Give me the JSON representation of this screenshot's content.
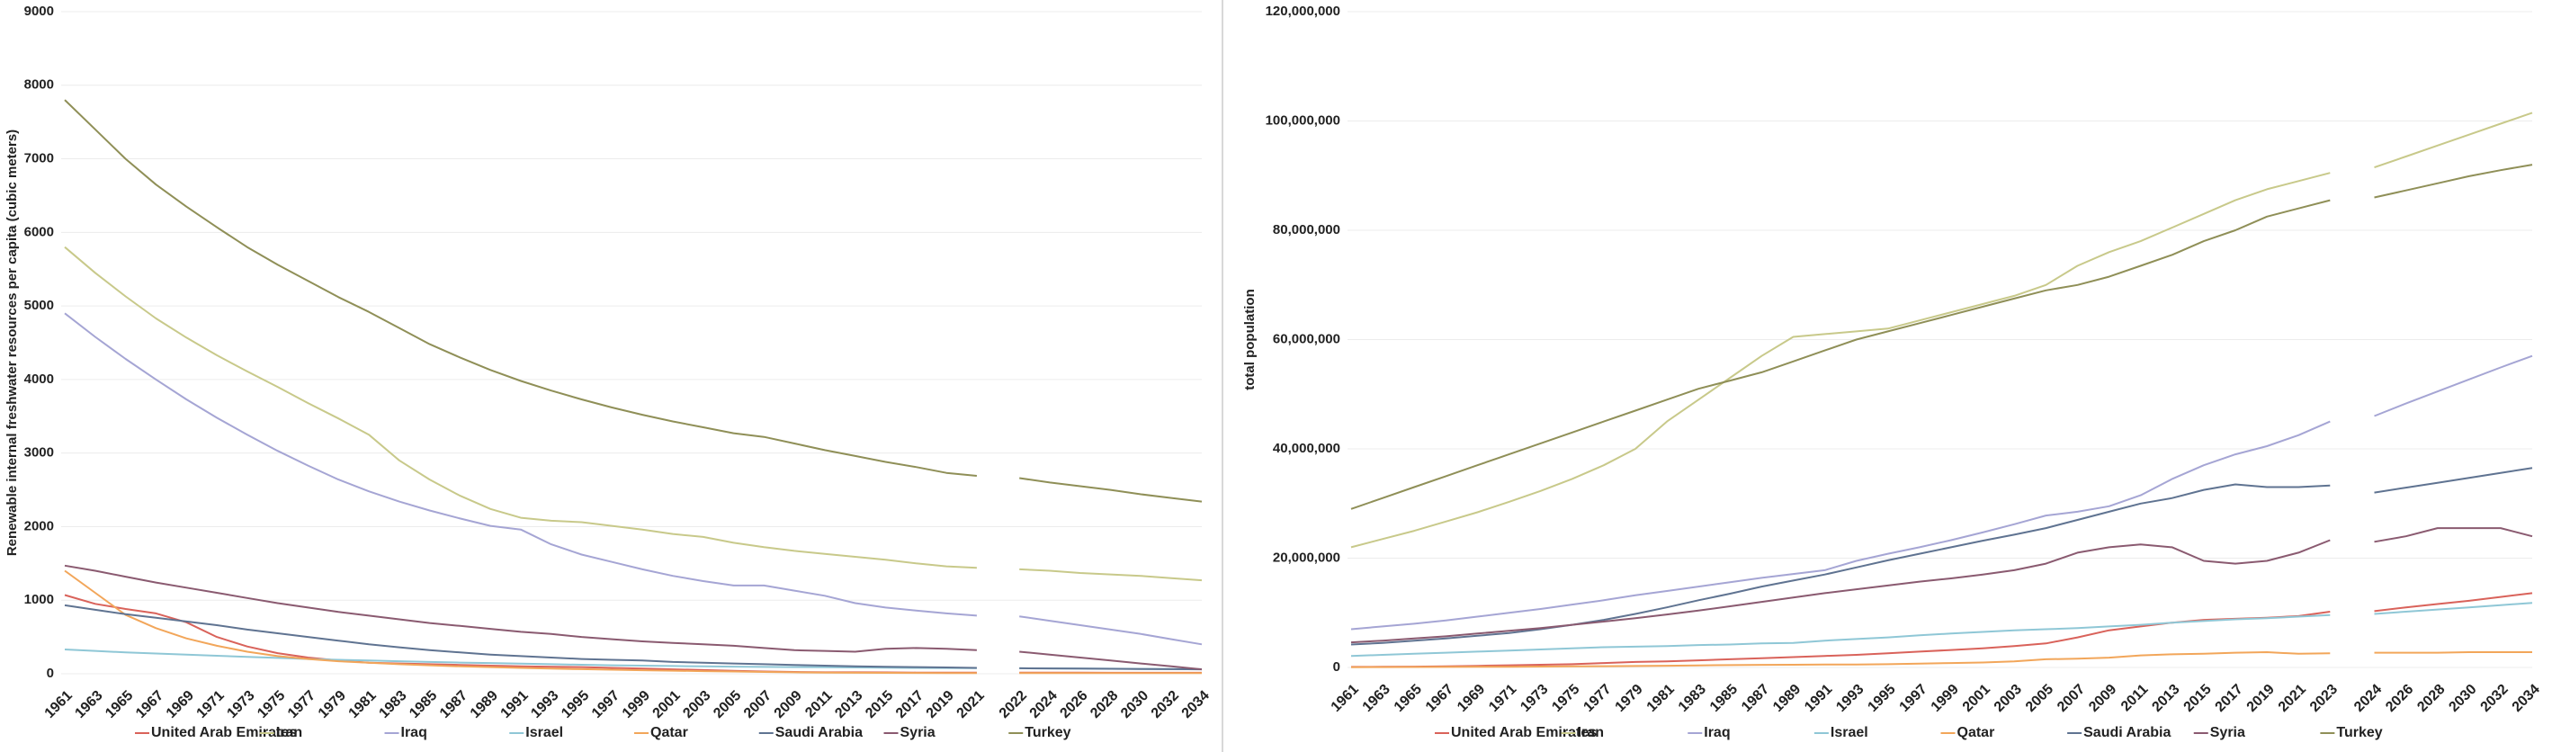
{
  "chart_data": [
    {
      "type": "line",
      "ylabel": "Renewable internal freshwater resources per capita (cubic meters)",
      "categories": [
        "1961",
        "1963",
        "1965",
        "1967",
        "1969",
        "1971",
        "1973",
        "1975",
        "1977",
        "1979",
        "1981",
        "1983",
        "1985",
        "1987",
        "1989",
        "1991",
        "1993",
        "1995",
        "1997",
        "1999",
        "2001",
        "2003",
        "2005",
        "2007",
        "2009",
        "2011",
        "2013",
        "2015",
        "2017",
        "2019",
        "2021",
        "2022",
        "2024",
        "2026",
        "2028",
        "2030",
        "2032",
        "2034"
      ],
      "ylim": [
        0,
        9000
      ],
      "yticks": [
        0,
        1000,
        2000,
        3000,
        4000,
        5000,
        6000,
        7000,
        8000,
        9000
      ],
      "grid": true,
      "series": [
        {
          "name": "United Arab Emirates",
          "color": "#d9625a",
          "values": [
            1070,
            950,
            880,
            820,
            700,
            500,
            370,
            280,
            220,
            180,
            150,
            140,
            130,
            120,
            110,
            100,
            95,
            90,
            80,
            70,
            60,
            50,
            40,
            30,
            25,
            20,
            20,
            18,
            16,
            16,
            16,
            16,
            15,
            15,
            14,
            14,
            13,
            13
          ]
        },
        {
          "name": "Iran",
          "color": "#c8c98a",
          "values": [
            5800,
            5450,
            5130,
            4830,
            4570,
            4330,
            4110,
            3900,
            3680,
            3470,
            3250,
            2900,
            2640,
            2420,
            2240,
            2120,
            2080,
            2060,
            2010,
            1960,
            1900,
            1860,
            1780,
            1720,
            1670,
            1630,
            1590,
            1550,
            1500,
            1460,
            1440,
            1420,
            1400,
            1370,
            1350,
            1330,
            1300,
            1270
          ]
        },
        {
          "name": "Iraq",
          "color": "#a5a5d4",
          "values": [
            4900,
            4580,
            4280,
            4000,
            3730,
            3480,
            3250,
            3030,
            2830,
            2640,
            2480,
            2340,
            2220,
            2110,
            2010,
            1960,
            1760,
            1620,
            1520,
            1420,
            1330,
            1260,
            1200,
            1200,
            1130,
            1060,
            960,
            900,
            860,
            820,
            790,
            780,
            720,
            660,
            600,
            540,
            470,
            400
          ]
        },
        {
          "name": "Israel",
          "color": "#8fc7d6",
          "values": [
            330,
            310,
            290,
            275,
            260,
            245,
            230,
            215,
            200,
            190,
            180,
            170,
            160,
            152,
            145,
            138,
            130,
            122,
            115,
            110,
            105,
            100,
            96,
            93,
            90,
            88,
            85,
            82,
            80,
            78,
            76,
            74,
            72,
            70,
            68,
            66,
            64,
            62
          ]
        },
        {
          "name": "Qatar",
          "color": "#f2a65a",
          "values": [
            1400,
            1100,
            800,
            620,
            480,
            380,
            300,
            240,
            200,
            170,
            150,
            130,
            115,
            100,
            90,
            80,
            70,
            62,
            55,
            48,
            42,
            36,
            30,
            24,
            20,
            16,
            14,
            12,
            11,
            10,
            10,
            10,
            10,
            10,
            10,
            9,
            9,
            9
          ]
        },
        {
          "name": "Saudi Arabia",
          "color": "#5f7391",
          "values": [
            930,
            870,
            810,
            760,
            710,
            660,
            600,
            550,
            500,
            450,
            400,
            360,
            320,
            290,
            260,
            240,
            220,
            200,
            190,
            180,
            160,
            150,
            140,
            130,
            120,
            110,
            100,
            95,
            90,
            85,
            80,
            75,
            72,
            70,
            67,
            65,
            62,
            60
          ]
        },
        {
          "name": "Syria",
          "color": "#8a5a70",
          "values": [
            1470,
            1400,
            1320,
            1240,
            1170,
            1100,
            1030,
            960,
            900,
            840,
            790,
            740,
            690,
            650,
            610,
            570,
            540,
            500,
            470,
            440,
            420,
            400,
            380,
            350,
            320,
            310,
            300,
            340,
            350,
            340,
            320,
            300,
            260,
            220,
            180,
            140,
            100,
            60
          ]
        },
        {
          "name": "Turkey",
          "color": "#8f8f57",
          "values": [
            7800,
            7400,
            7000,
            6650,
            6350,
            6070,
            5800,
            5560,
            5340,
            5120,
            4920,
            4700,
            4480,
            4300,
            4130,
            3980,
            3850,
            3730,
            3620,
            3520,
            3430,
            3350,
            3270,
            3220,
            3130,
            3040,
            2960,
            2880,
            2810,
            2730,
            2690,
            2660,
            2600,
            2550,
            2500,
            2440,
            2390,
            2340
          ]
        }
      ]
    },
    {
      "type": "line",
      "ylabel": "total population",
      "categories": [
        "1961",
        "1963",
        "1965",
        "1967",
        "1969",
        "1971",
        "1973",
        "1975",
        "1977",
        "1979",
        "1981",
        "1983",
        "1985",
        "1987",
        "1989",
        "1991",
        "1993",
        "1995",
        "1997",
        "1999",
        "2001",
        "2003",
        "2005",
        "2007",
        "2009",
        "2011",
        "2013",
        "2015",
        "2017",
        "2019",
        "2021",
        "2023",
        "2024",
        "2026",
        "2028",
        "2030",
        "2032",
        "2034"
      ],
      "ylim": [
        0,
        120000000
      ],
      "yticks": [
        0,
        {
          "value": 20000000,
          "label": "20,000,000"
        },
        {
          "value": 40000000,
          "label": "40,000,000"
        },
        {
          "value": 60000000,
          "label": "60,000,000"
        },
        {
          "value": 80000000,
          "label": "80,000,000"
        },
        {
          "value": 100000000,
          "label": "100,000,000"
        },
        {
          "value": 120000000,
          "label": "120,000,000"
        }
      ],
      "grid": true,
      "series": [
        {
          "name": "United Arab Emirates",
          "color": "#d9625a",
          "values": [
            100000,
            120000,
            150000,
            200000,
            300000,
            400000,
            500000,
            600000,
            800000,
            1000000,
            1100000,
            1300000,
            1500000,
            1700000,
            1900000,
            2100000,
            2300000,
            2600000,
            2900000,
            3200000,
            3500000,
            3900000,
            4400000,
            5500000,
            6800000,
            7500000,
            8200000,
            8700000,
            8900000,
            9100000,
            9400000,
            10200000,
            10300000,
            11000000,
            11600000,
            12200000,
            12900000,
            13600000
          ]
        },
        {
          "name": "Iran",
          "color": "#c8c98a",
          "values": [
            22000000,
            23500000,
            25000000,
            26700000,
            28400000,
            30300000,
            32300000,
            34500000,
            37000000,
            40000000,
            45000000,
            49000000,
            53000000,
            57000000,
            60500000,
            61000000,
            61500000,
            62000000,
            63500000,
            65000000,
            66500000,
            68000000,
            70000000,
            73500000,
            76000000,
            78000000,
            80500000,
            83000000,
            85500000,
            87500000,
            89000000,
            90500000,
            91500000,
            93500000,
            95500000,
            97500000,
            99500000,
            101500000
          ]
        },
        {
          "name": "Iraq",
          "color": "#a5a5d4",
          "values": [
            7000000,
            7500000,
            8000000,
            8600000,
            9300000,
            10000000,
            10700000,
            11500000,
            12300000,
            13200000,
            14000000,
            14800000,
            15600000,
            16400000,
            17100000,
            17800000,
            19500000,
            20800000,
            22000000,
            23300000,
            24700000,
            26200000,
            27800000,
            28500000,
            29500000,
            31500000,
            34500000,
            37000000,
            39000000,
            40500000,
            42500000,
            45000000,
            46000000,
            48300000,
            50500000,
            52700000,
            54900000,
            57000000
          ]
        },
        {
          "name": "Israel",
          "color": "#8fc7d6",
          "values": [
            2100000,
            2300000,
            2500000,
            2700000,
            2900000,
            3100000,
            3300000,
            3500000,
            3700000,
            3800000,
            3900000,
            4100000,
            4200000,
            4400000,
            4500000,
            4900000,
            5200000,
            5500000,
            5900000,
            6200000,
            6500000,
            6800000,
            7000000,
            7200000,
            7500000,
            7800000,
            8200000,
            8500000,
            8800000,
            9000000,
            9300000,
            9600000,
            9800000,
            10200000,
            10600000,
            11000000,
            11400000,
            11800000
          ]
        },
        {
          "name": "Qatar",
          "color": "#f2a65a",
          "values": [
            50000,
            60000,
            80000,
            100000,
            110000,
            130000,
            160000,
            190000,
            230000,
            270000,
            320000,
            380000,
            430000,
            480000,
            500000,
            520000,
            550000,
            600000,
            700000,
            800000,
            900000,
            1100000,
            1500000,
            1600000,
            1800000,
            2200000,
            2400000,
            2500000,
            2700000,
            2800000,
            2500000,
            2600000,
            2700000,
            2700000,
            2700000,
            2800000,
            2800000,
            2800000
          ]
        },
        {
          "name": "Saudi Arabia",
          "color": "#5f7391",
          "values": [
            4200000,
            4500000,
            4900000,
            5300000,
            5800000,
            6300000,
            7000000,
            7800000,
            8700000,
            9800000,
            11000000,
            12300000,
            13500000,
            14800000,
            15900000,
            17000000,
            18300000,
            19600000,
            20800000,
            22000000,
            23200000,
            24300000,
            25500000,
            27000000,
            28500000,
            30000000,
            31000000,
            32500000,
            33500000,
            33000000,
            33000000,
            33300000,
            32000000,
            32900000,
            33800000,
            34700000,
            35600000,
            36500000
          ]
        },
        {
          "name": "Syria",
          "color": "#8a5a70",
          "values": [
            4600000,
            4900000,
            5300000,
            5700000,
            6200000,
            6700000,
            7200000,
            7800000,
            8400000,
            9000000,
            9700000,
            10400000,
            11200000,
            12000000,
            12800000,
            13600000,
            14300000,
            15000000,
            15700000,
            16300000,
            17000000,
            17800000,
            19000000,
            21000000,
            22000000,
            22500000,
            22000000,
            19500000,
            19000000,
            19500000,
            21000000,
            23300000,
            23000000,
            24000000,
            25500000,
            25500000,
            25500000,
            24000000
          ]
        },
        {
          "name": "Turkey",
          "color": "#8f8f57",
          "values": [
            29000000,
            31000000,
            33000000,
            35000000,
            37000000,
            39000000,
            41000000,
            43000000,
            45000000,
            47000000,
            49000000,
            51000000,
            52500000,
            54000000,
            56000000,
            58000000,
            60000000,
            61500000,
            63000000,
            64500000,
            66000000,
            67500000,
            69000000,
            70000000,
            71500000,
            73500000,
            75500000,
            78000000,
            80000000,
            82500000,
            84000000,
            85500000,
            86000000,
            87300000,
            88600000,
            89900000,
            91000000,
            92000000
          ]
        }
      ]
    }
  ]
}
